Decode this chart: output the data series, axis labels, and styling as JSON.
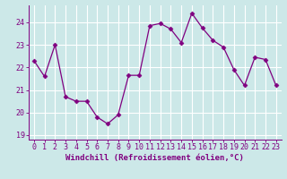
{
  "xlabel": "Windchill (Refroidissement éolien,°C)",
  "x_values": [
    0,
    1,
    2,
    3,
    4,
    5,
    6,
    7,
    8,
    9,
    10,
    11,
    12,
    13,
    14,
    15,
    16,
    17,
    18,
    19,
    20,
    21,
    22,
    23
  ],
  "y_values": [
    22.3,
    21.6,
    23.0,
    20.7,
    20.5,
    20.5,
    19.8,
    19.5,
    19.9,
    21.65,
    21.65,
    23.85,
    23.95,
    23.7,
    23.1,
    24.4,
    23.75,
    23.2,
    22.9,
    21.9,
    21.2,
    22.45,
    22.35,
    21.2
  ],
  "ylim": [
    18.8,
    24.75
  ],
  "yticks": [
    19,
    20,
    21,
    22,
    23,
    24
  ],
  "line_color": "#800080",
  "marker": "D",
  "marker_size": 2.5,
  "background_color": "#cce8e8",
  "grid_color": "#ffffff",
  "label_fontsize": 6.5,
  "tick_fontsize": 6.0
}
